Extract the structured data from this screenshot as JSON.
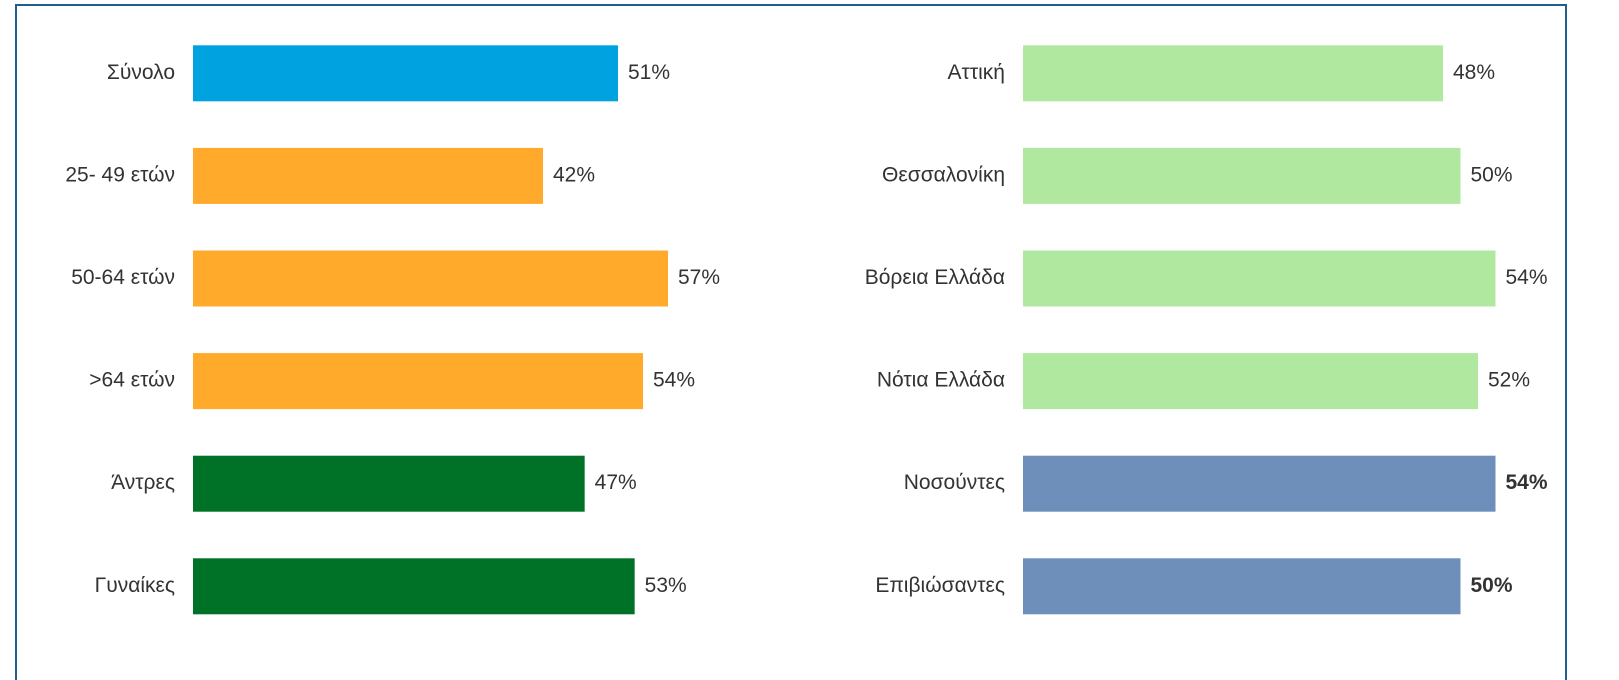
{
  "chart_data": [
    {
      "type": "bar",
      "orientation": "horizontal",
      "categories": [
        "Σύνολο",
        "25- 49 ετών",
        "50-64 ετών",
        ">64 ετών",
        "Άντρες",
        "Γυναίκες"
      ],
      "values": [
        51,
        42,
        57,
        54,
        47,
        53
      ],
      "value_labels": [
        "51%",
        "42%",
        "57%",
        "54%",
        "47%",
        "53%"
      ],
      "colors": [
        "#00a3e0",
        "#ffaa2a",
        "#ffaa2a",
        "#ffaa2a",
        "#007227",
        "#007227"
      ],
      "bold_labels": [
        false,
        false,
        false,
        false,
        false,
        false
      ],
      "xlim": [
        0,
        60
      ]
    },
    {
      "type": "bar",
      "orientation": "horizontal",
      "categories": [
        "Αττική",
        "Θεσσαλονίκη",
        "Βόρεια Ελλάδα",
        "Νότια Ελλάδα",
        "Νοσούντες",
        "Επιβιώσαντες"
      ],
      "values": [
        48,
        50,
        54,
        52,
        54,
        50
      ],
      "value_labels": [
        "48%",
        "50%",
        "54%",
        "52%",
        "54%",
        "50%"
      ],
      "colors": [
        "#b0e8a0",
        "#b0e8a0",
        "#b0e8a0",
        "#b0e8a0",
        "#6f8fbb",
        "#6f8fbb"
      ],
      "bold_labels": [
        false,
        false,
        false,
        false,
        true,
        true
      ],
      "xlim": [
        0,
        60
      ]
    }
  ]
}
